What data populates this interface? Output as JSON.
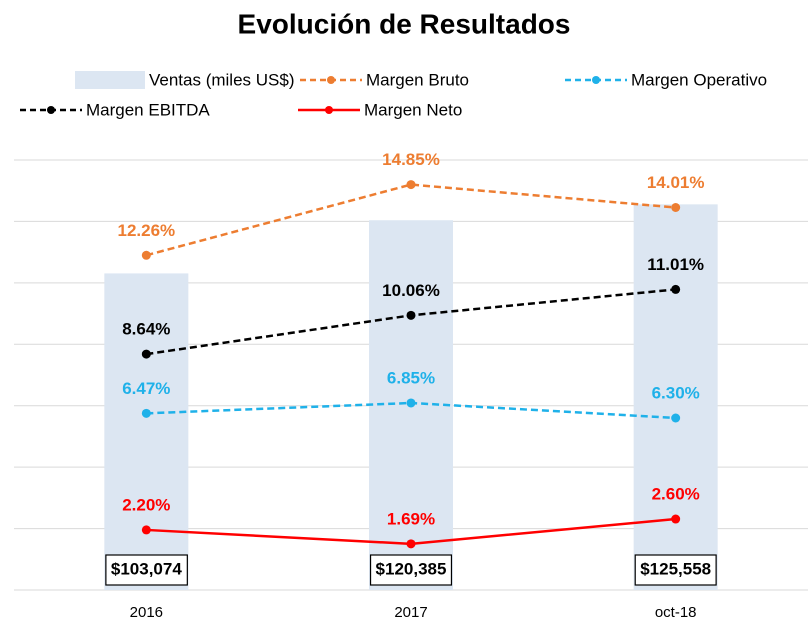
{
  "chart_data": {
    "type": "combo",
    "title": "Evolución de Resultados",
    "categories": [
      "2016",
      "2017",
      "oct-18"
    ],
    "ylim": [
      0,
      15.75
    ],
    "yticks": [
      0,
      2.25,
      4.5,
      6.75,
      9,
      11.25,
      13.5,
      15.75
    ],
    "grid": true,
    "y2lim": [
      0,
      140000
    ],
    "legend": "top",
    "series": [
      {
        "name": "Ventas (miles US$)",
        "type": "bar",
        "axis": "y2",
        "color": "#dce6f2",
        "values": [
          103074,
          120385,
          125558
        ],
        "value_labels": [
          "$103,074",
          "$120,385",
          "$125,558"
        ]
      },
      {
        "name": "Margen Bruto",
        "type": "line",
        "dashed": true,
        "color": "#ed7d31",
        "values": [
          12.26,
          14.85,
          14.01
        ],
        "value_labels": [
          "12.26%",
          "14.85%",
          "14.01%"
        ]
      },
      {
        "name": "Margen Operativo",
        "type": "line",
        "dashed": true,
        "color": "#1fb1e9",
        "values": [
          6.47,
          6.85,
          6.3
        ],
        "value_labels": [
          "6.47%",
          "6.85%",
          "6.30%"
        ]
      },
      {
        "name": "Margen EBITDA",
        "type": "line",
        "dashed": true,
        "color": "#000000",
        "values": [
          8.64,
          10.06,
          11.01
        ],
        "value_labels": [
          "8.64%",
          "10.06%",
          "11.01%"
        ]
      },
      {
        "name": "Margen Neto",
        "type": "line",
        "dashed": false,
        "color": "#ff0000",
        "values": [
          2.2,
          1.69,
          2.6
        ],
        "value_labels": [
          "2.20%",
          "1.69%",
          "2.60%"
        ]
      }
    ]
  }
}
